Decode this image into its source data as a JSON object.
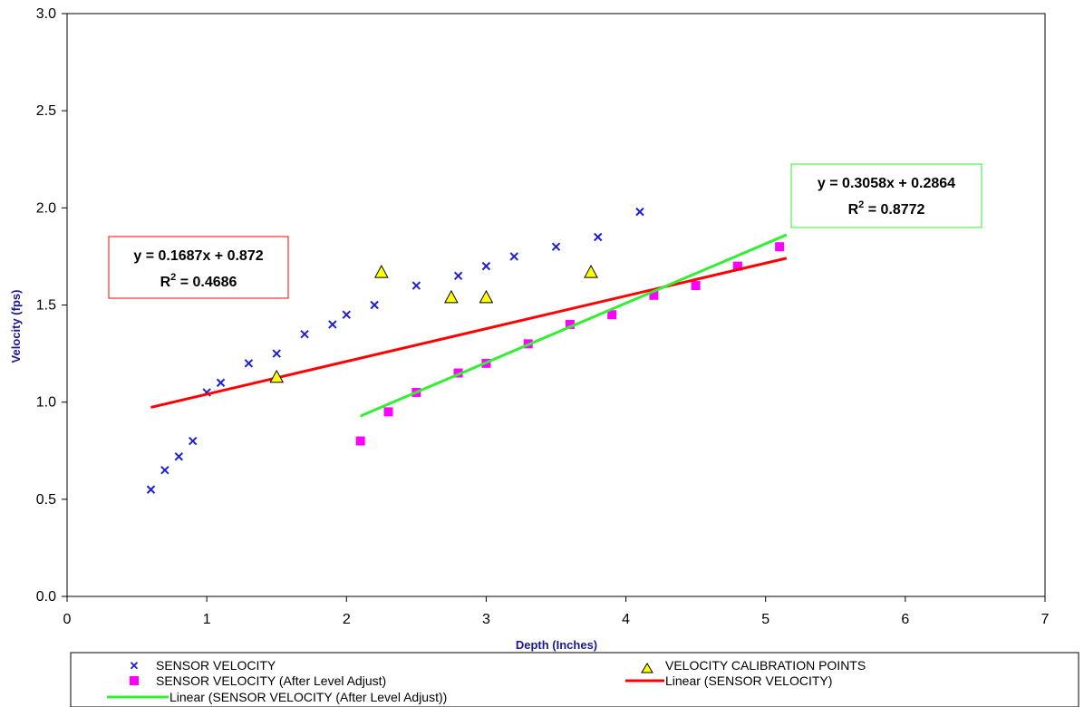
{
  "chart_data": {
    "type": "scatter",
    "title": "",
    "xlabel": "Depth (Inches)",
    "ylabel": "Velocity (fps)",
    "xlim": [
      0,
      7
    ],
    "ylim": [
      0.0,
      3.0
    ],
    "x_ticks": [
      "0",
      "1",
      "2",
      "3",
      "4",
      "5",
      "6",
      "7"
    ],
    "y_ticks": [
      "0.0",
      "0.5",
      "1.0",
      "1.5",
      "2.0",
      "2.5",
      "3.0"
    ],
    "grid": false,
    "legend_position": "bottom",
    "series": [
      {
        "name": "SENSOR VELOCITY",
        "marker": "x",
        "color": "#1f1fd6",
        "points": [
          [
            0.6,
            0.55
          ],
          [
            0.7,
            0.65
          ],
          [
            0.8,
            0.72
          ],
          [
            0.9,
            0.8
          ],
          [
            1.0,
            1.05
          ],
          [
            1.1,
            1.1
          ],
          [
            1.3,
            1.2
          ],
          [
            1.5,
            1.25
          ],
          [
            1.7,
            1.35
          ],
          [
            1.9,
            1.4
          ],
          [
            2.0,
            1.45
          ],
          [
            2.2,
            1.5
          ],
          [
            2.5,
            1.6
          ],
          [
            2.8,
            1.65
          ],
          [
            3.0,
            1.7
          ],
          [
            3.2,
            1.75
          ],
          [
            3.5,
            1.8
          ],
          [
            3.8,
            1.85
          ],
          [
            4.1,
            1.98
          ]
        ]
      },
      {
        "name": "SENSOR VELOCITY (After Level Adjust)",
        "marker": "square",
        "color": "#ff00ff",
        "points": [
          [
            2.1,
            0.8
          ],
          [
            2.3,
            0.95
          ],
          [
            2.5,
            1.05
          ],
          [
            2.8,
            1.15
          ],
          [
            3.0,
            1.2
          ],
          [
            3.3,
            1.3
          ],
          [
            3.6,
            1.4
          ],
          [
            3.9,
            1.45
          ],
          [
            4.2,
            1.55
          ],
          [
            4.5,
            1.6
          ],
          [
            4.8,
            1.7
          ],
          [
            5.1,
            1.8
          ]
        ]
      },
      {
        "name": "VELOCITY CALIBRATION POINTS",
        "marker": "triangle",
        "color": "#ffff00",
        "points": [
          [
            1.5,
            1.13
          ],
          [
            2.25,
            1.67
          ],
          [
            2.75,
            1.54
          ],
          [
            3.0,
            1.54
          ],
          [
            3.75,
            1.67
          ]
        ]
      },
      {
        "name": "Linear (SENSOR VELOCITY)",
        "type": "line",
        "color": "#ff0000",
        "x_range": [
          0.6,
          5.15
        ]
      },
      {
        "name": "Linear (SENSOR VELOCITY (After Level Adjust))",
        "type": "line",
        "color": "#33ee33",
        "x_range": [
          2.1,
          5.15
        ]
      }
    ],
    "trendlines": [
      {
        "equation": "y = 0.1687x + 0.872",
        "r2_label": "R",
        "r2_value": " = 0.4686",
        "slope": 0.1687,
        "intercept": 0.872,
        "box_color": "#ff0000"
      },
      {
        "equation": "y = 0.3058x + 0.2864",
        "r2_label": "R",
        "r2_value": " = 0.8772",
        "slope": 0.3058,
        "intercept": 0.2864,
        "box_color": "#33ee33"
      }
    ],
    "r2_superscript": "2"
  }
}
